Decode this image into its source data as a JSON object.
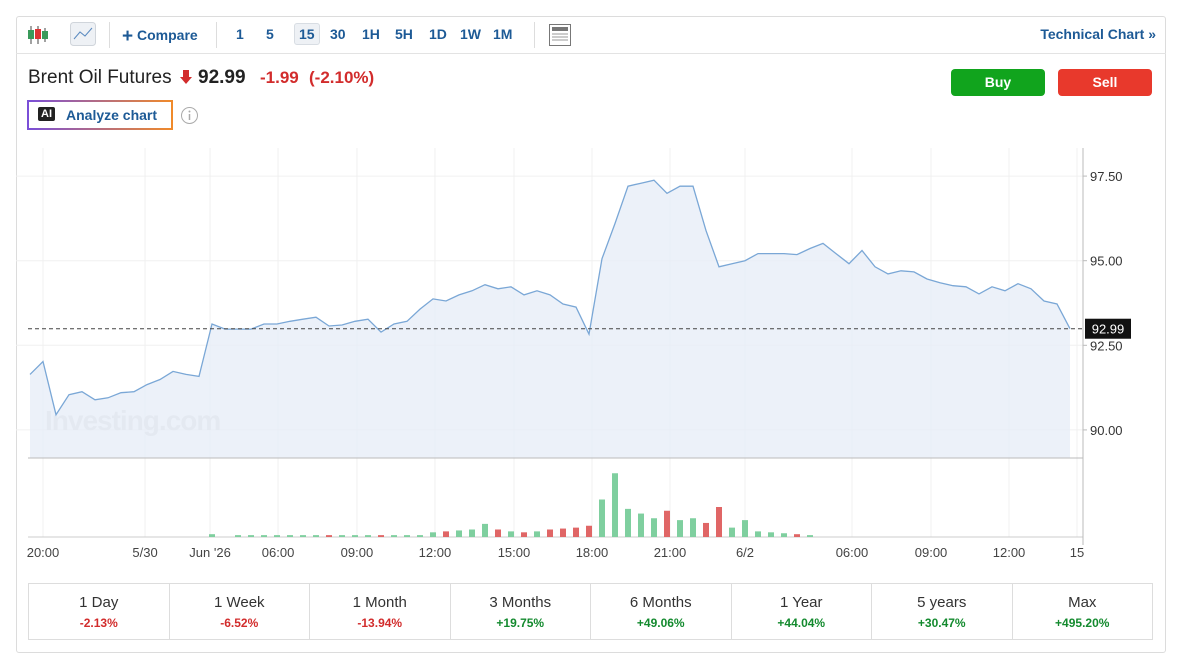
{
  "toolbar": {
    "compare": "Compare",
    "intervals": [
      "1",
      "5",
      "15",
      "30",
      "1H",
      "5H",
      "1D",
      "1W",
      "1M"
    ],
    "selected_interval": "15",
    "technical_chart": "Technical Chart »"
  },
  "header": {
    "name": "Brent Oil Futures",
    "price": 92.99,
    "change": "-1.99",
    "change_pct": "(-2.10%)",
    "buy": "Buy",
    "sell": "Sell",
    "analyze": "Analyze chart",
    "ai_badge": "AI"
  },
  "chart": {
    "type": "line",
    "watermark": "Investing.com",
    "color": "#7aa7d6",
    "fill": "#e7eef7",
    "values": [
      91.64,
      92.02,
      90.45,
      91.04,
      91.13,
      90.89,
      90.95,
      91.1,
      91.13,
      91.34,
      91.49,
      91.73,
      91.64,
      91.58,
      93.13,
      92.98,
      92.98,
      92.98,
      93.13,
      93.13,
      93.21,
      93.27,
      93.33,
      93.07,
      93.1,
      93.21,
      93.27,
      92.89,
      93.13,
      93.21,
      93.57,
      93.87,
      93.81,
      93.99,
      94.11,
      94.29,
      94.17,
      94.23,
      93.99,
      94.11,
      93.99,
      93.72,
      93.63,
      92.83,
      95.06,
      96.1,
      97.2,
      97.29,
      97.38,
      96.99,
      97.2,
      97.2,
      95.89,
      94.82,
      94.91,
      95.0,
      95.21,
      95.21,
      95.21,
      95.18,
      95.36,
      95.51,
      95.21,
      94.91,
      95.3,
      94.82,
      94.61,
      94.7,
      94.67,
      94.46,
      94.35,
      94.26,
      94.23,
      94.02,
      94.23,
      94.11,
      94.32,
      94.17,
      93.81,
      93.72,
      92.99
    ],
    "volume": {
      "values": [
        0,
        0,
        0,
        0,
        0,
        0,
        0,
        0,
        0,
        0,
        0,
        0,
        0,
        0,
        3,
        0,
        2,
        2,
        2,
        2,
        2,
        2,
        2,
        2,
        2,
        2,
        2,
        2,
        2,
        2,
        2,
        5,
        6,
        7,
        8,
        14,
        8,
        6,
        5,
        6,
        8,
        9,
        10,
        12,
        40,
        68,
        30,
        25,
        20,
        28,
        18,
        20,
        15,
        32,
        10,
        18,
        6,
        5,
        4,
        3,
        2,
        0,
        0,
        0,
        0,
        0,
        0,
        0,
        0,
        0,
        0,
        0,
        0,
        0,
        0,
        0,
        0,
        0,
        0,
        0,
        0
      ],
      "ylim": [
        0,
        80
      ],
      "up_color": "#7fcf9f",
      "down_color": "#e06666"
    },
    "xlim": [
      0,
      81
    ],
    "ylim": [
      89.17,
      98.33
    ],
    "yticks": [
      {
        "value": 90,
        "label": "90.00"
      },
      {
        "value": 92.5,
        "label": "92.50"
      },
      {
        "value": 95,
        "label": "95.00"
      },
      {
        "value": 97.5,
        "label": "97.50"
      }
    ],
    "xticks": [
      {
        "value": 1,
        "label": "20:00"
      },
      {
        "value": 8.85,
        "label": "5/30"
      },
      {
        "value": 13.85,
        "label": "Jun '26"
      },
      {
        "value": 19.08,
        "label": "06:00"
      },
      {
        "value": 25.15,
        "label": "09:00"
      },
      {
        "value": 31.15,
        "label": "12:00"
      },
      {
        "value": 37.23,
        "label": "15:00"
      },
      {
        "value": 43.23,
        "label": "18:00"
      },
      {
        "value": 49.23,
        "label": "21:00"
      },
      {
        "value": 55,
        "label": "6/2"
      },
      {
        "value": 63.23,
        "label": "06:00"
      },
      {
        "value": 69.31,
        "label": "09:00"
      },
      {
        "value": 75.31,
        "label": "12:00"
      },
      {
        "value": 80.54,
        "label": "15"
      }
    ],
    "grid": true
  },
  "periods": [
    {
      "label": "1 Day",
      "change": "-2.13%"
    },
    {
      "label": "1 Week",
      "change": "-6.52%"
    },
    {
      "label": "1 Month",
      "change": "-13.94%"
    },
    {
      "label": "3 Months",
      "change": "+19.75%"
    },
    {
      "label": "6 Months",
      "change": "+49.06%"
    },
    {
      "label": "1 Year",
      "change": "+44.04%"
    },
    {
      "label": "5 years",
      "change": "+30.47%"
    },
    {
      "label": "Max",
      "change": "+495.20%"
    }
  ]
}
